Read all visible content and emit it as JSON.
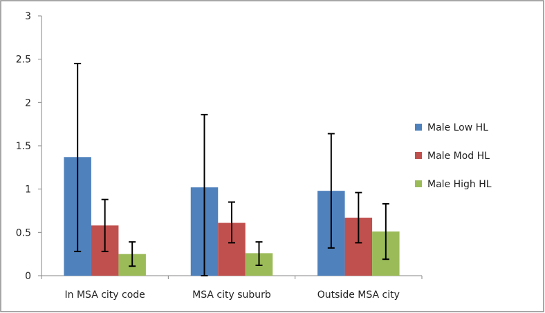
{
  "chart_data": {
    "type": "bar",
    "title": "",
    "xlabel": "",
    "ylabel": "",
    "ylim": [
      0,
      3
    ],
    "yticks": [
      0,
      0.5,
      1,
      1.5,
      2,
      2.5,
      3
    ],
    "ytick_labels": [
      "0",
      "0.5",
      "1",
      "1.5",
      "2",
      "2.5",
      "3"
    ],
    "grid": false,
    "legend_position": "right",
    "categories": [
      "In MSA city code",
      "MSA city suburb",
      "Outside MSA city"
    ],
    "series": [
      {
        "name": "Male Low HL",
        "color": "#4F81BD",
        "values": [
          1.37,
          1.02,
          0.98
        ],
        "err_low": [
          0.28,
          0.0,
          0.32
        ],
        "err_high": [
          2.45,
          1.86,
          1.64
        ]
      },
      {
        "name": "Male Mod HL",
        "color": "#C0504D",
        "values": [
          0.58,
          0.61,
          0.67
        ],
        "err_low": [
          0.28,
          0.38,
          0.38
        ],
        "err_high": [
          0.88,
          0.85,
          0.96
        ]
      },
      {
        "name": "Male High HL",
        "color": "#9BBB59",
        "values": [
          0.25,
          0.26,
          0.51
        ],
        "err_low": [
          0.11,
          0.12,
          0.19
        ],
        "err_high": [
          0.39,
          0.39,
          0.83
        ]
      }
    ]
  }
}
